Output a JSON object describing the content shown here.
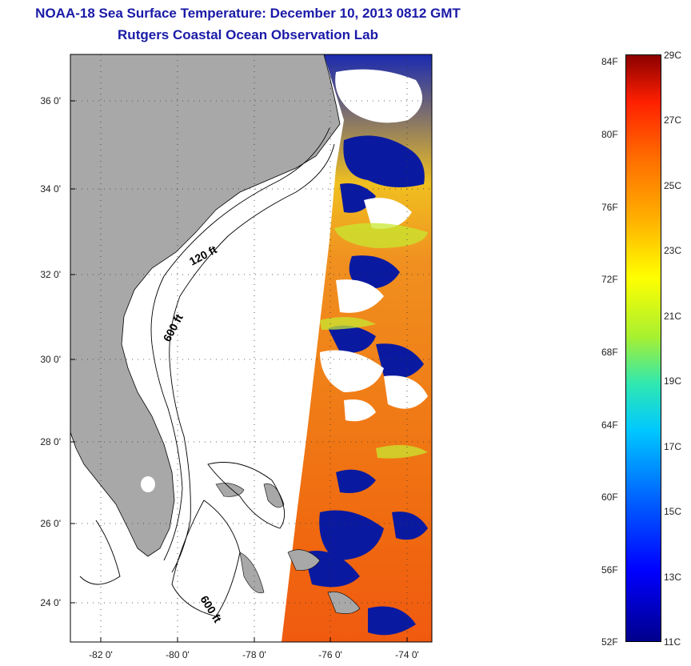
{
  "title": {
    "line1": "NOAA-18 Sea Surface Temperature:  December 10, 2013 0812 GMT",
    "line2": "Rutgers Coastal Ocean Observation Lab"
  },
  "map": {
    "x_ticks": [
      "-82 0'",
      "-80 0'",
      "-78 0'",
      "-76 0'",
      "-74 0'"
    ],
    "y_ticks": [
      "36 0'",
      "34 0'",
      "32 0'",
      "30 0'",
      "28 0'",
      "26 0'",
      "24 0'"
    ],
    "contour_labels": [
      "120 ft",
      "600 ft",
      "600 ft"
    ],
    "colors": {
      "land": "#a8a8a8",
      "cold": "#0a1aa0",
      "warm": "#f07a10",
      "cloud": "#ffffff"
    }
  },
  "colorbar": {
    "fahrenheit": [
      "84F",
      "80F",
      "76F",
      "72F",
      "68F",
      "64F",
      "60F",
      "56F",
      "52F"
    ],
    "celsius": [
      "29C",
      "27C",
      "25C",
      "23C",
      "21C",
      "19C",
      "17C",
      "15C",
      "13C",
      "11C"
    ]
  }
}
